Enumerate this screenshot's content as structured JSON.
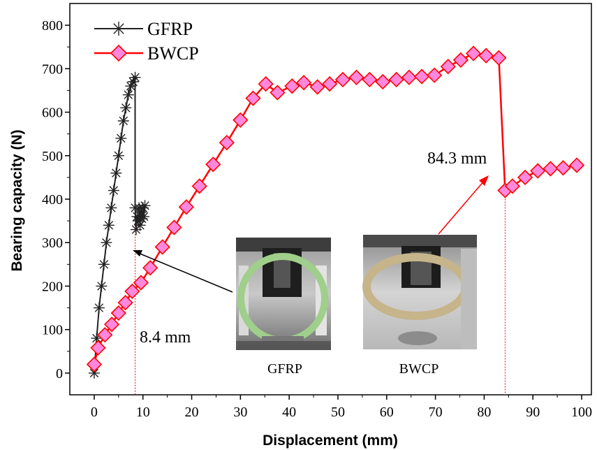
{
  "chart_data": {
    "type": "line",
    "title": "",
    "xlabel": "Displacement (mm)",
    "ylabel": "Bearing capacity (N)",
    "xlim": [
      -5,
      102
    ],
    "ylim": [
      -50,
      850
    ],
    "x_ticks": [
      0,
      10,
      20,
      30,
      40,
      50,
      60,
      70,
      80,
      90,
      100
    ],
    "y_ticks": [
      0,
      100,
      200,
      300,
      400,
      500,
      600,
      700,
      800
    ],
    "legend_position": "top-left",
    "series": [
      {
        "name": "GFRP",
        "color": "#222222",
        "marker": "asterisk",
        "x": [
          0,
          0.5,
          1.0,
          1.5,
          2.0,
          2.5,
          3.0,
          3.5,
          4.0,
          4.5,
          5.0,
          5.5,
          6.0,
          6.5,
          7.0,
          7.5,
          8.0,
          8.4,
          8.4,
          8.6,
          8.8,
          9.0,
          9.2,
          9.4,
          9.6,
          9.8,
          10.0,
          10.2,
          10.4
        ],
        "y": [
          0,
          80,
          150,
          200,
          250,
          300,
          340,
          380,
          420,
          460,
          500,
          540,
          580,
          610,
          640,
          660,
          670,
          680,
          380,
          330,
          360,
          350,
          380,
          340,
          370,
          355,
          380,
          360,
          385
        ]
      },
      {
        "name": "BWCP",
        "color": "#ff0000",
        "marker": "diamond",
        "marker_fill": "#ff88dd",
        "x": [
          0,
          0.8,
          2.2,
          3.6,
          5.0,
          6.4,
          7.8,
          9.6,
          11.5,
          14.0,
          16.4,
          18.9,
          21.6,
          24.4,
          27.2,
          30.0,
          32.6,
          35.2,
          37.6,
          40.6,
          43.0,
          45.8,
          48.3,
          51.0,
          53.8,
          56.5,
          59.2,
          62.0,
          64.6,
          67.2,
          69.8,
          72.6,
          75.2,
          77.8,
          80.4,
          83.0,
          84.3,
          85.8,
          88.4,
          91.0,
          93.6,
          96.2,
          99.0
        ],
        "y": [
          20,
          58,
          88,
          112,
          138,
          162,
          188,
          208,
          242,
          290,
          335,
          382,
          430,
          480,
          530,
          582,
          632,
          665,
          645,
          660,
          668,
          658,
          665,
          675,
          680,
          675,
          670,
          675,
          680,
          682,
          685,
          705,
          720,
          735,
          730,
          725,
          420,
          430,
          450,
          465,
          470,
          472,
          478
        ]
      }
    ],
    "annotations": [
      {
        "text": "8.4 mm",
        "x": 8.4
      },
      {
        "text": "84.3 mm",
        "x": 84.3
      }
    ],
    "photo_labels": [
      "GFRP",
      "BWCP"
    ]
  }
}
